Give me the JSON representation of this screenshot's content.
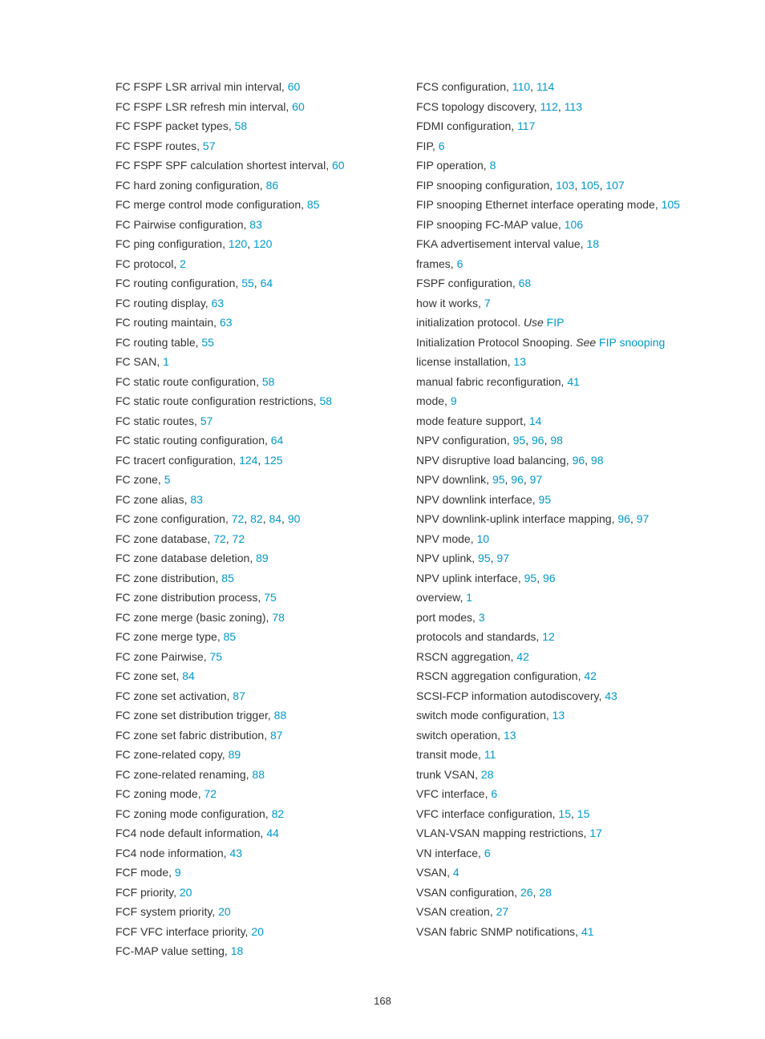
{
  "pageNumber": "168",
  "leftColumn": [
    {
      "parts": [
        {
          "t": "FC FSPF LSR arrival min interval, "
        },
        {
          "t": "60",
          "link": true
        }
      ]
    },
    {
      "parts": [
        {
          "t": "FC FSPF LSR refresh min interval, "
        },
        {
          "t": "60",
          "link": true
        }
      ]
    },
    {
      "parts": [
        {
          "t": "FC FSPF packet types, "
        },
        {
          "t": "58",
          "link": true
        }
      ]
    },
    {
      "parts": [
        {
          "t": "FC FSPF routes, "
        },
        {
          "t": "57",
          "link": true
        }
      ]
    },
    {
      "parts": [
        {
          "t": "FC FSPF SPF calculation shortest interval, "
        },
        {
          "t": "60",
          "link": true
        }
      ]
    },
    {
      "parts": [
        {
          "t": "FC hard zoning configuration, "
        },
        {
          "t": "86",
          "link": true
        }
      ]
    },
    {
      "parts": [
        {
          "t": "FC merge control mode configuration, "
        },
        {
          "t": "85",
          "link": true
        }
      ]
    },
    {
      "parts": [
        {
          "t": "FC Pairwise configuration, "
        },
        {
          "t": "83",
          "link": true
        }
      ]
    },
    {
      "parts": [
        {
          "t": "FC ping configuration, "
        },
        {
          "t": "120",
          "link": true
        },
        {
          "t": ", "
        },
        {
          "t": "120",
          "link": true
        }
      ]
    },
    {
      "parts": [
        {
          "t": "FC protocol, "
        },
        {
          "t": "2",
          "link": true
        }
      ]
    },
    {
      "parts": [
        {
          "t": "FC routing configuration, "
        },
        {
          "t": "55",
          "link": true
        },
        {
          "t": ", "
        },
        {
          "t": "64",
          "link": true
        }
      ]
    },
    {
      "parts": [
        {
          "t": "FC routing display, "
        },
        {
          "t": "63",
          "link": true
        }
      ]
    },
    {
      "parts": [
        {
          "t": "FC routing maintain, "
        },
        {
          "t": "63",
          "link": true
        }
      ]
    },
    {
      "parts": [
        {
          "t": "FC routing table, "
        },
        {
          "t": "55",
          "link": true
        }
      ]
    },
    {
      "parts": [
        {
          "t": "FC SAN, "
        },
        {
          "t": "1",
          "link": true
        }
      ]
    },
    {
      "parts": [
        {
          "t": "FC static route configuration, "
        },
        {
          "t": "58",
          "link": true
        }
      ]
    },
    {
      "parts": [
        {
          "t": "FC static route configuration restrictions, "
        },
        {
          "t": "58",
          "link": true
        }
      ]
    },
    {
      "parts": [
        {
          "t": "FC static routes, "
        },
        {
          "t": "57",
          "link": true
        }
      ]
    },
    {
      "parts": [
        {
          "t": "FC static routing configuration, "
        },
        {
          "t": "64",
          "link": true
        }
      ]
    },
    {
      "parts": [
        {
          "t": "FC tracert configuration, "
        },
        {
          "t": "124",
          "link": true
        },
        {
          "t": ", "
        },
        {
          "t": "125",
          "link": true
        }
      ]
    },
    {
      "parts": [
        {
          "t": "FC zone, "
        },
        {
          "t": "5",
          "link": true
        }
      ]
    },
    {
      "parts": [
        {
          "t": "FC zone alias, "
        },
        {
          "t": "83",
          "link": true
        }
      ]
    },
    {
      "parts": [
        {
          "t": "FC zone configuration, "
        },
        {
          "t": "72",
          "link": true
        },
        {
          "t": ", "
        },
        {
          "t": "82",
          "link": true
        },
        {
          "t": ", "
        },
        {
          "t": "84",
          "link": true
        },
        {
          "t": ", "
        },
        {
          "t": "90",
          "link": true
        }
      ]
    },
    {
      "parts": [
        {
          "t": "FC zone database, "
        },
        {
          "t": "72",
          "link": true
        },
        {
          "t": ", "
        },
        {
          "t": "72",
          "link": true
        }
      ]
    },
    {
      "parts": [
        {
          "t": "FC zone database deletion, "
        },
        {
          "t": "89",
          "link": true
        }
      ]
    },
    {
      "parts": [
        {
          "t": "FC zone distribution, "
        },
        {
          "t": "85",
          "link": true
        }
      ]
    },
    {
      "parts": [
        {
          "t": "FC zone distribution process, "
        },
        {
          "t": "75",
          "link": true
        }
      ]
    },
    {
      "parts": [
        {
          "t": "FC zone merge (basic zoning), "
        },
        {
          "t": "78",
          "link": true
        }
      ]
    },
    {
      "parts": [
        {
          "t": "FC zone merge type, "
        },
        {
          "t": "85",
          "link": true
        }
      ]
    },
    {
      "parts": [
        {
          "t": "FC zone Pairwise, "
        },
        {
          "t": "75",
          "link": true
        }
      ]
    },
    {
      "parts": [
        {
          "t": "FC zone set, "
        },
        {
          "t": "84",
          "link": true
        }
      ]
    },
    {
      "parts": [
        {
          "t": "FC zone set activation, "
        },
        {
          "t": "87",
          "link": true
        }
      ]
    },
    {
      "parts": [
        {
          "t": "FC zone set distribution trigger, "
        },
        {
          "t": "88",
          "link": true
        }
      ]
    },
    {
      "parts": [
        {
          "t": "FC zone set fabric distribution, "
        },
        {
          "t": "87",
          "link": true
        }
      ]
    },
    {
      "parts": [
        {
          "t": "FC zone-related copy, "
        },
        {
          "t": "89",
          "link": true
        }
      ]
    },
    {
      "parts": [
        {
          "t": "FC zone-related renaming, "
        },
        {
          "t": "88",
          "link": true
        }
      ]
    },
    {
      "parts": [
        {
          "t": "FC zoning mode, "
        },
        {
          "t": "72",
          "link": true
        }
      ]
    },
    {
      "parts": [
        {
          "t": "FC zoning mode configuration, "
        },
        {
          "t": "82",
          "link": true
        }
      ]
    },
    {
      "parts": [
        {
          "t": "FC4 node default information, "
        },
        {
          "t": "44",
          "link": true
        }
      ]
    },
    {
      "parts": [
        {
          "t": "FC4 node information, "
        },
        {
          "t": "43",
          "link": true
        }
      ]
    },
    {
      "parts": [
        {
          "t": "FCF mode, "
        },
        {
          "t": "9",
          "link": true
        }
      ]
    },
    {
      "parts": [
        {
          "t": "FCF priority, "
        },
        {
          "t": "20",
          "link": true
        }
      ]
    },
    {
      "parts": [
        {
          "t": "FCF system priority, "
        },
        {
          "t": "20",
          "link": true
        }
      ]
    },
    {
      "parts": [
        {
          "t": "FCF VFC interface priority, "
        },
        {
          "t": "20",
          "link": true
        }
      ]
    },
    {
      "parts": [
        {
          "t": "FC-MAP value setting, "
        },
        {
          "t": "18",
          "link": true
        }
      ]
    }
  ],
  "rightColumn": [
    {
      "parts": [
        {
          "t": "FCS configuration, "
        },
        {
          "t": "110",
          "link": true
        },
        {
          "t": ", "
        },
        {
          "t": "114",
          "link": true
        }
      ]
    },
    {
      "parts": [
        {
          "t": "FCS topology discovery, "
        },
        {
          "t": "112",
          "link": true
        },
        {
          "t": ", "
        },
        {
          "t": "113",
          "link": true
        }
      ]
    },
    {
      "parts": [
        {
          "t": "FDMI configuration, "
        },
        {
          "t": "117",
          "link": true
        }
      ]
    },
    {
      "parts": [
        {
          "t": "FIP, "
        },
        {
          "t": "6",
          "link": true
        }
      ]
    },
    {
      "parts": [
        {
          "t": "FIP operation, "
        },
        {
          "t": "8",
          "link": true
        }
      ]
    },
    {
      "parts": [
        {
          "t": "FIP snooping configuration, "
        },
        {
          "t": "103",
          "link": true
        },
        {
          "t": ", "
        },
        {
          "t": "105",
          "link": true
        },
        {
          "t": ", "
        },
        {
          "t": "107",
          "link": true
        }
      ]
    },
    {
      "parts": [
        {
          "t": "FIP snooping Ethernet interface operating mode, "
        },
        {
          "t": "105",
          "link": true
        }
      ]
    },
    {
      "parts": [
        {
          "t": "FIP snooping FC-MAP value, "
        },
        {
          "t": "106",
          "link": true
        }
      ]
    },
    {
      "parts": [
        {
          "t": "FKA advertisement interval value, "
        },
        {
          "t": "18",
          "link": true
        }
      ]
    },
    {
      "parts": [
        {
          "t": "frames, "
        },
        {
          "t": "6",
          "link": true
        }
      ]
    },
    {
      "parts": [
        {
          "t": "FSPF configuration, "
        },
        {
          "t": "68",
          "link": true
        }
      ]
    },
    {
      "parts": [
        {
          "t": "how it works, "
        },
        {
          "t": "7",
          "link": true
        }
      ]
    },
    {
      "parts": [
        {
          "t": "initialization protocol. "
        },
        {
          "t": "Use ",
          "italic": true
        },
        {
          "t": "FIP",
          "link": true
        }
      ]
    },
    {
      "parts": [
        {
          "t": "Initialization Protocol Snooping. "
        },
        {
          "t": "See ",
          "italic": true
        },
        {
          "t": "FIP snooping",
          "link": true
        }
      ]
    },
    {
      "parts": [
        {
          "t": "license installation, "
        },
        {
          "t": "13",
          "link": true
        }
      ]
    },
    {
      "parts": [
        {
          "t": "manual fabric reconfiguration, "
        },
        {
          "t": "41",
          "link": true
        }
      ]
    },
    {
      "parts": [
        {
          "t": "mode, "
        },
        {
          "t": "9",
          "link": true
        }
      ]
    },
    {
      "parts": [
        {
          "t": "mode feature support, "
        },
        {
          "t": "14",
          "link": true
        }
      ]
    },
    {
      "parts": [
        {
          "t": "NPV configuration, "
        },
        {
          "t": "95",
          "link": true
        },
        {
          "t": ", "
        },
        {
          "t": "96",
          "link": true
        },
        {
          "t": ", "
        },
        {
          "t": "98",
          "link": true
        }
      ]
    },
    {
      "parts": [
        {
          "t": "NPV disruptive load balancing, "
        },
        {
          "t": "96",
          "link": true
        },
        {
          "t": ", "
        },
        {
          "t": "98",
          "link": true
        }
      ]
    },
    {
      "parts": [
        {
          "t": "NPV downlink, "
        },
        {
          "t": "95",
          "link": true
        },
        {
          "t": ", "
        },
        {
          "t": "96",
          "link": true
        },
        {
          "t": ", "
        },
        {
          "t": "97",
          "link": true
        }
      ]
    },
    {
      "parts": [
        {
          "t": "NPV downlink interface, "
        },
        {
          "t": "95",
          "link": true
        }
      ]
    },
    {
      "parts": [
        {
          "t": "NPV downlink-uplink interface mapping, "
        },
        {
          "t": "96",
          "link": true
        },
        {
          "t": ", "
        },
        {
          "t": "97",
          "link": true
        }
      ]
    },
    {
      "parts": [
        {
          "t": "NPV mode, "
        },
        {
          "t": "10",
          "link": true
        }
      ]
    },
    {
      "parts": [
        {
          "t": "NPV uplink, "
        },
        {
          "t": "95",
          "link": true
        },
        {
          "t": ", "
        },
        {
          "t": "97",
          "link": true
        }
      ]
    },
    {
      "parts": [
        {
          "t": "NPV uplink interface, "
        },
        {
          "t": "95",
          "link": true
        },
        {
          "t": ", "
        },
        {
          "t": "96",
          "link": true
        }
      ]
    },
    {
      "parts": [
        {
          "t": "overview, "
        },
        {
          "t": "1",
          "link": true
        }
      ]
    },
    {
      "parts": [
        {
          "t": "port modes, "
        },
        {
          "t": "3",
          "link": true
        }
      ]
    },
    {
      "parts": [
        {
          "t": "protocols and standards, "
        },
        {
          "t": "12",
          "link": true
        }
      ]
    },
    {
      "parts": [
        {
          "t": "RSCN aggregation, "
        },
        {
          "t": "42",
          "link": true
        }
      ]
    },
    {
      "parts": [
        {
          "t": "RSCN aggregation configuration, "
        },
        {
          "t": "42",
          "link": true
        }
      ]
    },
    {
      "parts": [
        {
          "t": "SCSI-FCP information autodiscovery, "
        },
        {
          "t": "43",
          "link": true
        }
      ]
    },
    {
      "parts": [
        {
          "t": "switch mode configuration, "
        },
        {
          "t": "13",
          "link": true
        }
      ]
    },
    {
      "parts": [
        {
          "t": "switch operation, "
        },
        {
          "t": "13",
          "link": true
        }
      ]
    },
    {
      "parts": [
        {
          "t": "transit mode, "
        },
        {
          "t": "11",
          "link": true
        }
      ]
    },
    {
      "parts": [
        {
          "t": "trunk VSAN, "
        },
        {
          "t": "28",
          "link": true
        }
      ]
    },
    {
      "parts": [
        {
          "t": "VFC interface, "
        },
        {
          "t": "6",
          "link": true
        }
      ]
    },
    {
      "parts": [
        {
          "t": "VFC interface configuration, "
        },
        {
          "t": "15",
          "link": true
        },
        {
          "t": ", "
        },
        {
          "t": "15",
          "link": true
        }
      ]
    },
    {
      "parts": [
        {
          "t": "VLAN-VSAN mapping restrictions, "
        },
        {
          "t": "17",
          "link": true
        }
      ]
    },
    {
      "parts": [
        {
          "t": "VN interface, "
        },
        {
          "t": "6",
          "link": true
        }
      ]
    },
    {
      "parts": [
        {
          "t": "VSAN, "
        },
        {
          "t": "4",
          "link": true
        }
      ]
    },
    {
      "parts": [
        {
          "t": "VSAN configuration, "
        },
        {
          "t": "26",
          "link": true
        },
        {
          "t": ", "
        },
        {
          "t": "28",
          "link": true
        }
      ]
    },
    {
      "parts": [
        {
          "t": "VSAN creation, "
        },
        {
          "t": "27",
          "link": true
        }
      ]
    },
    {
      "parts": [
        {
          "t": "VSAN fabric SNMP notifications, "
        },
        {
          "t": "41",
          "link": true
        }
      ]
    }
  ]
}
